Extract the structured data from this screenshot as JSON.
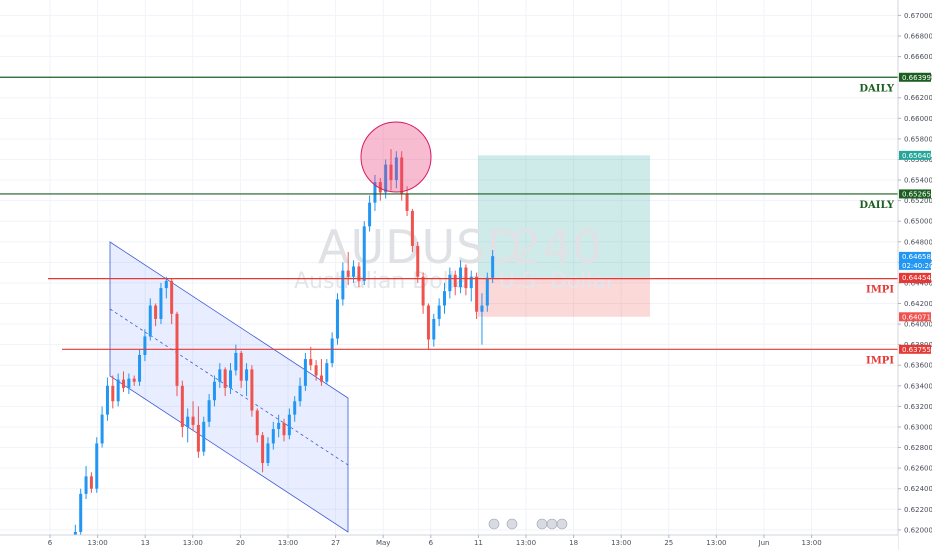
{
  "chart_data": {
    "type": "candlestick",
    "watermark": {
      "symbol": "AUDUSD",
      "interval": "240",
      "description": "Australian Dollar / U.S. Dollar"
    },
    "y_axis": {
      "range": [
        0.6195,
        0.6715
      ],
      "ticks": [
        "0.67000",
        "0.66800",
        "0.66600",
        "0.66400",
        "0.66200",
        "0.66000",
        "0.65800",
        "0.65600",
        "0.65400",
        "0.65200",
        "0.65000",
        "0.64800",
        "0.64600",
        "0.64400",
        "0.64200",
        "0.64000",
        "0.63800",
        "0.63600",
        "0.63400",
        "0.63200",
        "0.63000",
        "0.62800",
        "0.62600",
        "0.62400",
        "0.62200",
        "0.62000"
      ]
    },
    "x_axis": {
      "ticks": [
        "6",
        "13:00",
        "13",
        "13:00",
        "20",
        "13:00",
        "27",
        "May",
        "6",
        "11",
        "13:00",
        "18",
        "13:00",
        "25",
        "13:00",
        "Jun",
        "13:00"
      ]
    },
    "horizontal_levels": [
      {
        "label": "DAILY",
        "price": 0.66399,
        "tag": "0.66399",
        "color": "#1b5e20"
      },
      {
        "label": "DAILY",
        "price": 0.65265,
        "tag": "0.65265",
        "color": "#1b5e20"
      },
      {
        "label": "IMPI",
        "price": 0.64442,
        "tag": "0.64442",
        "color": "#e53935"
      },
      {
        "label": "IMPI",
        "price": 0.63755,
        "tag": "0.63755",
        "color": "#e53935"
      }
    ],
    "price_tags": [
      {
        "price": 0.6564,
        "text": "0.65640",
        "color": "#26a69a"
      },
      {
        "price": 0.64658,
        "text": "0.64658",
        "color": "#2196f3"
      },
      {
        "price": 0.64454,
        "text": "0.64454",
        "color": "#e53935"
      },
      {
        "price": 0.64071,
        "text": "0.64071",
        "color": "#ef5350"
      }
    ],
    "countdown": "02:40:20",
    "position": {
      "type": "long",
      "entry": 0.64454,
      "target": 0.6564,
      "stop": 0.64071
    },
    "candles": [
      {
        "o": 0.617,
        "h": 0.619,
        "l": 0.616,
        "c": 0.618
      },
      {
        "o": 0.618,
        "h": 0.6205,
        "l": 0.6175,
        "c": 0.6198
      },
      {
        "o": 0.6198,
        "h": 0.624,
        "l": 0.6195,
        "c": 0.6235
      },
      {
        "o": 0.6235,
        "h": 0.6262,
        "l": 0.623,
        "c": 0.6252
      },
      {
        "o": 0.6252,
        "h": 0.6256,
        "l": 0.6236,
        "c": 0.624
      },
      {
        "o": 0.624,
        "h": 0.629,
        "l": 0.6236,
        "c": 0.6284
      },
      {
        "o": 0.6284,
        "h": 0.632,
        "l": 0.628,
        "c": 0.6312
      },
      {
        "o": 0.6312,
        "h": 0.6348,
        "l": 0.6306,
        "c": 0.634
      },
      {
        "o": 0.634,
        "h": 0.635,
        "l": 0.6318,
        "c": 0.6325
      },
      {
        "o": 0.6325,
        "h": 0.6352,
        "l": 0.632,
        "c": 0.6346
      },
      {
        "o": 0.6346,
        "h": 0.6354,
        "l": 0.6334,
        "c": 0.6338
      },
      {
        "o": 0.6338,
        "h": 0.6352,
        "l": 0.6332,
        "c": 0.6347
      },
      {
        "o": 0.6347,
        "h": 0.635,
        "l": 0.634,
        "c": 0.6344
      },
      {
        "o": 0.6344,
        "h": 0.6375,
        "l": 0.634,
        "c": 0.637
      },
      {
        "o": 0.637,
        "h": 0.6395,
        "l": 0.6364,
        "c": 0.6388
      },
      {
        "o": 0.6388,
        "h": 0.6425,
        "l": 0.6384,
        "c": 0.6418
      },
      {
        "o": 0.6418,
        "h": 0.642,
        "l": 0.6398,
        "c": 0.6405
      },
      {
        "o": 0.6405,
        "h": 0.644,
        "l": 0.64,
        "c": 0.6435
      },
      {
        "o": 0.6435,
        "h": 0.6446,
        "l": 0.6425,
        "c": 0.6442
      },
      {
        "o": 0.6442,
        "h": 0.6444,
        "l": 0.64,
        "c": 0.641
      },
      {
        "o": 0.641,
        "h": 0.6412,
        "l": 0.633,
        "c": 0.634
      },
      {
        "o": 0.634,
        "h": 0.6345,
        "l": 0.629,
        "c": 0.63
      },
      {
        "o": 0.63,
        "h": 0.6318,
        "l": 0.6285,
        "c": 0.631
      },
      {
        "o": 0.631,
        "h": 0.6325,
        "l": 0.6296,
        "c": 0.6302
      },
      {
        "o": 0.6302,
        "h": 0.632,
        "l": 0.627,
        "c": 0.6276
      },
      {
        "o": 0.6276,
        "h": 0.631,
        "l": 0.6272,
        "c": 0.6305
      },
      {
        "o": 0.6305,
        "h": 0.6332,
        "l": 0.63,
        "c": 0.6326
      },
      {
        "o": 0.6326,
        "h": 0.635,
        "l": 0.632,
        "c": 0.6344
      },
      {
        "o": 0.6344,
        "h": 0.6362,
        "l": 0.6338,
        "c": 0.6356
      },
      {
        "o": 0.6356,
        "h": 0.6358,
        "l": 0.633,
        "c": 0.6338
      },
      {
        "o": 0.6338,
        "h": 0.6362,
        "l": 0.6332,
        "c": 0.6355
      },
      {
        "o": 0.6355,
        "h": 0.638,
        "l": 0.635,
        "c": 0.6372
      },
      {
        "o": 0.6372,
        "h": 0.6374,
        "l": 0.6338,
        "c": 0.6345
      },
      {
        "o": 0.6345,
        "h": 0.6362,
        "l": 0.633,
        "c": 0.6356
      },
      {
        "o": 0.6356,
        "h": 0.636,
        "l": 0.631,
        "c": 0.6316
      },
      {
        "o": 0.6316,
        "h": 0.6318,
        "l": 0.6285,
        "c": 0.6292
      },
      {
        "o": 0.6292,
        "h": 0.6295,
        "l": 0.6256,
        "c": 0.6265
      },
      {
        "o": 0.6265,
        "h": 0.629,
        "l": 0.6262,
        "c": 0.6284
      },
      {
        "o": 0.6284,
        "h": 0.6305,
        "l": 0.6278,
        "c": 0.6298
      },
      {
        "o": 0.6298,
        "h": 0.6312,
        "l": 0.629,
        "c": 0.6304
      },
      {
        "o": 0.6304,
        "h": 0.6308,
        "l": 0.6286,
        "c": 0.6292
      },
      {
        "o": 0.6292,
        "h": 0.6318,
        "l": 0.6288,
        "c": 0.6312
      },
      {
        "o": 0.6312,
        "h": 0.633,
        "l": 0.6305,
        "c": 0.6325
      },
      {
        "o": 0.6325,
        "h": 0.6348,
        "l": 0.632,
        "c": 0.634
      },
      {
        "o": 0.634,
        "h": 0.6372,
        "l": 0.6335,
        "c": 0.6366
      },
      {
        "o": 0.6366,
        "h": 0.6378,
        "l": 0.6355,
        "c": 0.636
      },
      {
        "o": 0.636,
        "h": 0.6365,
        "l": 0.6345,
        "c": 0.635
      },
      {
        "o": 0.635,
        "h": 0.6366,
        "l": 0.634,
        "c": 0.6344
      },
      {
        "o": 0.6344,
        "h": 0.6366,
        "l": 0.6342,
        "c": 0.6362
      },
      {
        "o": 0.6362,
        "h": 0.6392,
        "l": 0.6358,
        "c": 0.6386
      },
      {
        "o": 0.6386,
        "h": 0.643,
        "l": 0.638,
        "c": 0.6424
      },
      {
        "o": 0.6424,
        "h": 0.646,
        "l": 0.6418,
        "c": 0.6452
      },
      {
        "o": 0.6452,
        "h": 0.647,
        "l": 0.6438,
        "c": 0.6446
      },
      {
        "o": 0.6446,
        "h": 0.6462,
        "l": 0.644,
        "c": 0.6456
      },
      {
        "o": 0.6456,
        "h": 0.646,
        "l": 0.6436,
        "c": 0.6442
      },
      {
        "o": 0.6442,
        "h": 0.65,
        "l": 0.6438,
        "c": 0.6495
      },
      {
        "o": 0.6495,
        "h": 0.6525,
        "l": 0.649,
        "c": 0.6518
      },
      {
        "o": 0.6518,
        "h": 0.6545,
        "l": 0.651,
        "c": 0.6538
      },
      {
        "o": 0.6538,
        "h": 0.6542,
        "l": 0.652,
        "c": 0.6528
      },
      {
        "o": 0.6528,
        "h": 0.656,
        "l": 0.6522,
        "c": 0.6555
      },
      {
        "o": 0.6555,
        "h": 0.657,
        "l": 0.653,
        "c": 0.654
      },
      {
        "o": 0.654,
        "h": 0.6568,
        "l": 0.6532,
        "c": 0.6562
      },
      {
        "o": 0.6562,
        "h": 0.6568,
        "l": 0.652,
        "c": 0.6526
      },
      {
        "o": 0.6526,
        "h": 0.6534,
        "l": 0.6505,
        "c": 0.651
      },
      {
        "o": 0.651,
        "h": 0.6512,
        "l": 0.647,
        "c": 0.6476
      },
      {
        "o": 0.6476,
        "h": 0.648,
        "l": 0.644,
        "c": 0.6446
      },
      {
        "o": 0.6446,
        "h": 0.645,
        "l": 0.641,
        "c": 0.6418
      },
      {
        "o": 0.6418,
        "h": 0.642,
        "l": 0.6375,
        "c": 0.6385
      },
      {
        "o": 0.6385,
        "h": 0.641,
        "l": 0.6378,
        "c": 0.6405
      },
      {
        "o": 0.6405,
        "h": 0.6425,
        "l": 0.6398,
        "c": 0.6418
      },
      {
        "o": 0.6418,
        "h": 0.644,
        "l": 0.641,
        "c": 0.6432
      },
      {
        "o": 0.6432,
        "h": 0.6455,
        "l": 0.6425,
        "c": 0.6448
      },
      {
        "o": 0.6448,
        "h": 0.6452,
        "l": 0.6428,
        "c": 0.6436
      },
      {
        "o": 0.6436,
        "h": 0.6462,
        "l": 0.643,
        "c": 0.6455
      },
      {
        "o": 0.6455,
        "h": 0.6458,
        "l": 0.6428,
        "c": 0.6435
      },
      {
        "o": 0.6435,
        "h": 0.6452,
        "l": 0.6422,
        "c": 0.6446
      },
      {
        "o": 0.6446,
        "h": 0.645,
        "l": 0.6405,
        "c": 0.6412
      },
      {
        "o": 0.6412,
        "h": 0.643,
        "l": 0.638,
        "c": 0.6418
      },
      {
        "o": 0.6418,
        "h": 0.645,
        "l": 0.6412,
        "c": 0.6445
      },
      {
        "o": 0.6445,
        "h": 0.6472,
        "l": 0.644,
        "c": 0.6466
      }
    ]
  }
}
